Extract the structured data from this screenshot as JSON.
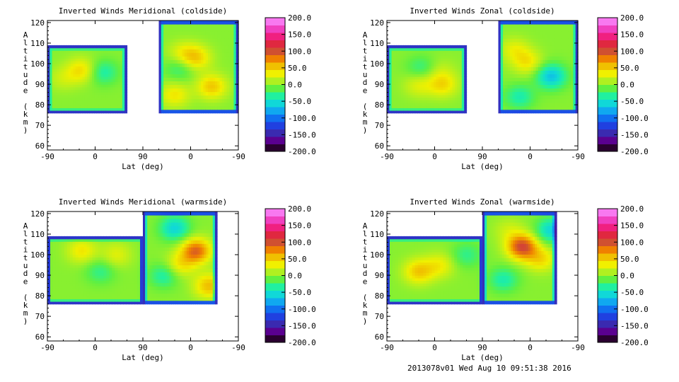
{
  "colors": {
    "background": "#ffffff",
    "frame": "#000000"
  },
  "colorbar": {
    "ticks": [
      "200.0",
      "150.0",
      "100.0",
      "50.0",
      "0.0",
      "-50.0",
      "-100.0",
      "-150.0",
      "-200.0"
    ],
    "range": [
      -200,
      200
    ],
    "colors_low_to_high": [
      "#2a0030",
      "#5a0090",
      "#3a2ab0",
      "#2040e0",
      "#1070f0",
      "#10a8f0",
      "#10d8d8",
      "#20f0a0",
      "#60f040",
      "#b0f020",
      "#f0f000",
      "#f0c000",
      "#f08000",
      "#d05030",
      "#e02840",
      "#f02080",
      "#f040c0",
      "#f878f0"
    ]
  },
  "footer": "2013078v01 Wed Aug 10 09:51:38 2016",
  "chart_data": [
    {
      "type": "heatmap",
      "title": "Inverted Winds Meridional (coldside)",
      "xlabel": "Lat (deg)",
      "ylabel": "Altitude (km)",
      "xticks": [
        "-90",
        "0",
        "90",
        "0",
        "-90"
      ],
      "yticks": [
        "60",
        "70",
        "80",
        "90",
        "100",
        "110",
        "120"
      ],
      "ylim": [
        58,
        121
      ],
      "value_range": [
        -200,
        200
      ],
      "segments": [
        {
          "x": [
            -90,
            60
          ],
          "alt": [
            76,
            109
          ]
        },
        {
          "x": [
            120,
            270
          ],
          "alt": [
            76,
            121
          ]
        }
      ],
      "extrema": [
        {
          "x": -25,
          "alt": 97,
          "value": 45
        },
        {
          "x": 15,
          "alt": 96,
          "value": -40
        },
        {
          "x": -60,
          "alt": 93,
          "value": 20
        },
        {
          "x": 165,
          "alt": 105,
          "value": 30
        },
        {
          "x": 190,
          "alt": 103,
          "value": 50
        },
        {
          "x": 160,
          "alt": 98,
          "value": -30
        },
        {
          "x": 220,
          "alt": 89,
          "value": 55
        },
        {
          "x": 150,
          "alt": 85,
          "value": 40
        }
      ]
    },
    {
      "type": "heatmap",
      "title": "Inverted Winds Zonal (coldside)",
      "xlabel": "Lat (deg)",
      "ylabel": "Altitude (km)",
      "xticks": [
        "-90",
        "0",
        "90",
        "0",
        "-90"
      ],
      "yticks": [
        "60",
        "70",
        "80",
        "90",
        "100",
        "110",
        "120"
      ],
      "ylim": [
        58,
        121
      ],
      "value_range": [
        -200,
        200
      ],
      "segments": [
        {
          "x": [
            -90,
            60
          ],
          "alt": [
            76,
            109
          ]
        },
        {
          "x": [
            120,
            270
          ],
          "alt": [
            76,
            121
          ]
        }
      ],
      "extrema": [
        {
          "x": -25,
          "alt": 98,
          "value": -30
        },
        {
          "x": 10,
          "alt": 97,
          "value": 15
        },
        {
          "x": 15,
          "alt": 90,
          "value": 45
        },
        {
          "x": -30,
          "alt": 90,
          "value": 30
        },
        {
          "x": 150,
          "alt": 107,
          "value": 30
        },
        {
          "x": 175,
          "alt": 101,
          "value": 40
        },
        {
          "x": 220,
          "alt": 94,
          "value": -70
        },
        {
          "x": 160,
          "alt": 84,
          "value": -40
        }
      ]
    },
    {
      "type": "heatmap",
      "title": "Inverted Winds Meridional (warmside)",
      "xlabel": "Lat (deg)",
      "ylabel": "Altitude (km)",
      "xticks": [
        "-90",
        "0",
        "90",
        "0",
        "-90"
      ],
      "yticks": [
        "60",
        "70",
        "80",
        "90",
        "100",
        "110",
        "120"
      ],
      "ylim": [
        58,
        121
      ],
      "value_range": [
        -200,
        200
      ],
      "segments": [
        {
          "x": [
            -90,
            90
          ],
          "alt": [
            76,
            109
          ]
        },
        {
          "x": [
            90,
            230
          ],
          "alt": [
            76,
            121
          ]
        }
      ],
      "extrema": [
        {
          "x": -25,
          "alt": 102,
          "value": 40
        },
        {
          "x": 40,
          "alt": 100,
          "value": 30
        },
        {
          "x": 10,
          "alt": 92,
          "value": -30
        },
        {
          "x": 150,
          "alt": 113,
          "value": -60
        },
        {
          "x": 190,
          "alt": 102,
          "value": 95
        },
        {
          "x": 160,
          "alt": 95,
          "value": 40
        },
        {
          "x": 215,
          "alt": 85,
          "value": 60
        },
        {
          "x": 130,
          "alt": 90,
          "value": -40
        }
      ]
    },
    {
      "type": "heatmap",
      "title": "Inverted Winds Zonal (warmside)",
      "xlabel": "Lat (deg)",
      "ylabel": "Altitude (km)",
      "xticks": [
        "-90",
        "0",
        "90",
        "0",
        "-90"
      ],
      "yticks": [
        "60",
        "70",
        "80",
        "90",
        "100",
        "110",
        "120"
      ],
      "ylim": [
        58,
        121
      ],
      "value_range": [
        -200,
        200
      ],
      "segments": [
        {
          "x": [
            -90,
            90
          ],
          "alt": [
            76,
            109
          ]
        },
        {
          "x": [
            90,
            230
          ],
          "alt": [
            76,
            121
          ]
        }
      ],
      "extrema": [
        {
          "x": -30,
          "alt": 92,
          "value": 55
        },
        {
          "x": 10,
          "alt": 95,
          "value": 35
        },
        {
          "x": 60,
          "alt": 100,
          "value": -30
        },
        {
          "x": 165,
          "alt": 104,
          "value": 110
        },
        {
          "x": 140,
          "alt": 112,
          "value": 20
        },
        {
          "x": 200,
          "alt": 98,
          "value": 45
        },
        {
          "x": 220,
          "alt": 112,
          "value": -60
        },
        {
          "x": 130,
          "alt": 88,
          "value": -40
        }
      ]
    }
  ]
}
